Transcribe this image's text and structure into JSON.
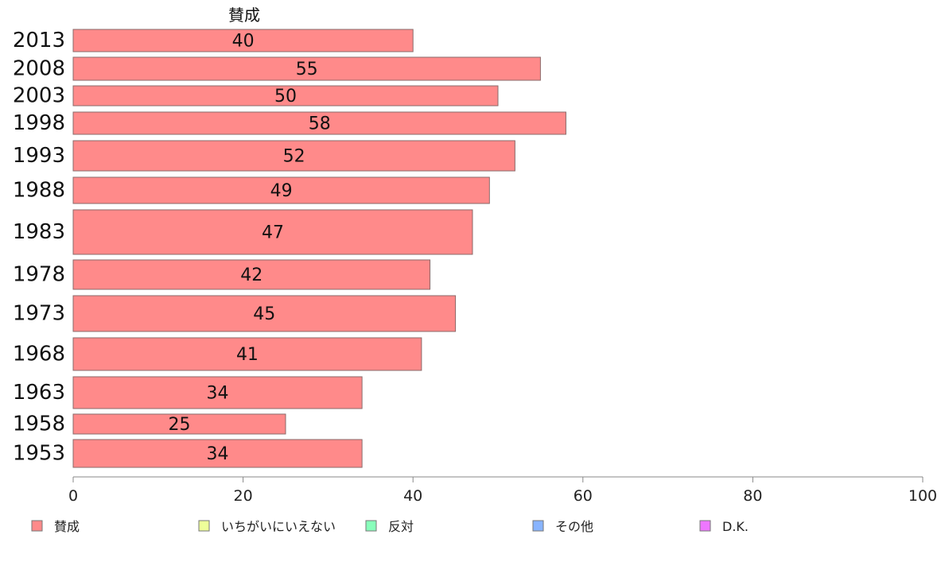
{
  "chart_data": {
    "type": "bar",
    "orientation": "horizontal",
    "series_title": "賛成",
    "categories": [
      "2013",
      "2008",
      "2003",
      "1998",
      "1993",
      "1988",
      "1983",
      "1978",
      "1973",
      "1968",
      "1963",
      "1958",
      "1953"
    ],
    "series": [
      {
        "name": "賛成",
        "values": [
          40,
          55,
          50,
          58,
          52,
          49,
          47,
          42,
          45,
          41,
          34,
          25,
          34
        ]
      }
    ],
    "value_labels": [
      "40",
      "55",
      "50",
      "58",
      "52",
      "49",
      "47",
      "42",
      "45",
      "41",
      "34",
      "25",
      "34"
    ],
    "xlim": [
      0,
      100
    ],
    "x_ticks": [
      "0",
      "20",
      "40",
      "60",
      "80",
      "100"
    ],
    "grid": false,
    "legend_position": "bottom",
    "legend": [
      {
        "label": "賛成",
        "color": "#ff8a8a"
      },
      {
        "label": "いちがいにいえない",
        "color": "#eeff99"
      },
      {
        "label": "反対",
        "color": "#88ffbb"
      },
      {
        "label": "その他",
        "color": "#88b4ff"
      },
      {
        "label": "D.K.",
        "color": "#ee77ff"
      }
    ],
    "bar_color": "#ff8a8a",
    "bar_stroke": "#8a6a6a"
  }
}
